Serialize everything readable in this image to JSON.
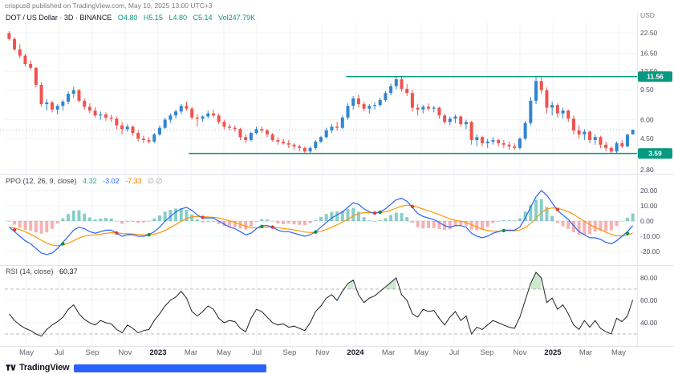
{
  "header": {
    "byline": "crispus8 published on TradingView.com, May 10, 2025 13:00 UTC+3"
  },
  "footer": {
    "brand": "TradingView"
  },
  "colors": {
    "candle_up": "#2f86d0",
    "candle_down": "#ef5350",
    "ray": "#089981",
    "hist_up": "rgba(38,166,154,0.55)",
    "hist_down": "rgba(239,83,80,0.45)",
    "ppo_line": "#2962ff",
    "signal_line": "#ff9800",
    "buy_marker": "#0c9146",
    "sell_marker": "#e53935",
    "rsi_line": "#1e222d",
    "rsi_fill": "rgba(76,175,80,0.28)"
  },
  "x_axis": {
    "labels": [
      {
        "t": "May"
      },
      {
        "t": "Jul"
      },
      {
        "t": "Sep"
      },
      {
        "t": "Nov"
      },
      {
        "t": "2023",
        "year": true
      },
      {
        "t": "Mar"
      },
      {
        "t": "May"
      },
      {
        "t": "Jul"
      },
      {
        "t": "Sep"
      },
      {
        "t": "Nov"
      },
      {
        "t": "2024",
        "year": true
      },
      {
        "t": "Mar"
      },
      {
        "t": "May"
      },
      {
        "t": "Jul"
      },
      {
        "t": "Sep"
      },
      {
        "t": "Nov"
      },
      {
        "t": "2025",
        "year": true
      },
      {
        "t": "Mar"
      },
      {
        "t": "May"
      }
    ]
  },
  "chart_data": [
    {
      "type": "candlestick",
      "symbol": "DOT / US Dollar",
      "interval": "3D",
      "exchange": "BINANCE",
      "legend": {
        "title": "DOT / US Dollar · 3D · BINANCE",
        "open": "O4.80",
        "high": "H5.15",
        "low": "L4.80",
        "close": "C5.14",
        "volume": "Vol247.79K"
      },
      "scale": "log",
      "y_axis": {
        "label": "USD",
        "ticks": [
          22.5,
          16.5,
          12.5,
          9.5,
          6.0,
          4.5,
          2.8
        ]
      },
      "last_price": 5.14,
      "levels": [
        {
          "price": 11.56,
          "start_frac": 0.54
        },
        {
          "price": 3.59,
          "start_frac": 0.29
        }
      ],
      "candles": [
        [
          22.4,
          23.1,
          20,
          20.5
        ],
        [
          20.5,
          21,
          17.2,
          17.5
        ],
        [
          17.5,
          18.9,
          15.3,
          15.9
        ],
        [
          15.9,
          16.4,
          13.5,
          14
        ],
        [
          14,
          14.8,
          12.8,
          13.2
        ],
        [
          13.2,
          13.4,
          9.8,
          10.2
        ],
        [
          10.2,
          10.6,
          7.3,
          7.6
        ],
        [
          7.6,
          8.2,
          6.9,
          7.8
        ],
        [
          7.8,
          8,
          6.7,
          7
        ],
        [
          7,
          7.6,
          6.5,
          7.4
        ],
        [
          7.4,
          8.1,
          6.9,
          7.9
        ],
        [
          7.9,
          9.2,
          7.6,
          8.9
        ],
        [
          8.9,
          9.9,
          8.4,
          9.4
        ],
        [
          9.4,
          9.6,
          7.8,
          8
        ],
        [
          8,
          8.3,
          7,
          7.3
        ],
        [
          7.3,
          7.7,
          6.6,
          6.9
        ],
        [
          6.9,
          7.3,
          6.2,
          6.4
        ],
        [
          6.4,
          6.8,
          6,
          6.5
        ],
        [
          6.5,
          6.7,
          5.9,
          6.2
        ],
        [
          6.2,
          6.5,
          5.8,
          6.1
        ],
        [
          6.1,
          6.3,
          5.2,
          5.5
        ],
        [
          5.5,
          5.8,
          4.8,
          5.2
        ],
        [
          5.2,
          5.6,
          5,
          5.4
        ],
        [
          5.4,
          5.5,
          4.7,
          4.9
        ],
        [
          4.9,
          5.1,
          4.3,
          4.5
        ],
        [
          4.5,
          4.7,
          4.2,
          4.4
        ],
        [
          4.4,
          4.6,
          4.2,
          4.3
        ],
        [
          4.3,
          4.9,
          4.2,
          4.8
        ],
        [
          4.8,
          5.5,
          4.7,
          5.3
        ],
        [
          5.3,
          6.2,
          5.2,
          6
        ],
        [
          6,
          6.6,
          5.7,
          6.4
        ],
        [
          6.4,
          7,
          6.1,
          6.8
        ],
        [
          6.8,
          7.6,
          6.5,
          7.4
        ],
        [
          7.4,
          7.9,
          6.9,
          7.1
        ],
        [
          7.1,
          7.3,
          6,
          6.2
        ],
        [
          6.2,
          6.5,
          5.4,
          6.1
        ],
        [
          6.1,
          6.4,
          5.8,
          6.3
        ],
        [
          6.3,
          6.9,
          6.1,
          6.6
        ],
        [
          6.6,
          7,
          6.2,
          6.4
        ],
        [
          6.4,
          6.6,
          5.6,
          5.8
        ],
        [
          5.8,
          6,
          5.2,
          5.4
        ],
        [
          5.4,
          5.6,
          5.1,
          5.3
        ],
        [
          5.3,
          5.5,
          5,
          5.2
        ],
        [
          5.2,
          5.3,
          4.4,
          4.6
        ],
        [
          4.6,
          4.8,
          4.2,
          4.4
        ],
        [
          4.4,
          5,
          4.3,
          4.9
        ],
        [
          4.9,
          5.4,
          4.8,
          5.2
        ],
        [
          5.2,
          5.4,
          4.9,
          5.1
        ],
        [
          5.1,
          5.2,
          4.6,
          4.8
        ],
        [
          4.8,
          4.9,
          4.3,
          4.4
        ],
        [
          4.4,
          4.6,
          4.1,
          4.3
        ],
        [
          4.3,
          4.5,
          4.1,
          4.2
        ],
        [
          4.2,
          4.4,
          3.9,
          4.1
        ],
        [
          4.1,
          4.2,
          3.8,
          4
        ],
        [
          4,
          4.1,
          3.7,
          3.9
        ],
        [
          3.9,
          4,
          3.6,
          3.7
        ],
        [
          3.7,
          4,
          3.6,
          3.9
        ],
        [
          3.9,
          4.4,
          3.8,
          4.3
        ],
        [
          4.3,
          4.7,
          4.2,
          4.6
        ],
        [
          4.6,
          5.3,
          4.5,
          5.1
        ],
        [
          5.1,
          5.6,
          4.9,
          5.4
        ],
        [
          5.4,
          5.8,
          5.1,
          5.3
        ],
        [
          5.3,
          6.4,
          5.2,
          6.2
        ],
        [
          6.2,
          7.7,
          6,
          7.4
        ],
        [
          7.4,
          8.6,
          7,
          8.3
        ],
        [
          8.3,
          8.8,
          7.2,
          7.6
        ],
        [
          7.6,
          7.9,
          6.8,
          7.1
        ],
        [
          7.1,
          7.6,
          6.6,
          7.4
        ],
        [
          7.4,
          7.8,
          7,
          7.5
        ],
        [
          7.5,
          8.4,
          7.3,
          8.1
        ],
        [
          8.1,
          9.3,
          7.9,
          9
        ],
        [
          9,
          10.4,
          8.7,
          10
        ],
        [
          10,
          11.62,
          9.5,
          11.1
        ],
        [
          11.1,
          11.5,
          9.2,
          9.6
        ],
        [
          9.6,
          10.3,
          8.6,
          9
        ],
        [
          9,
          9.5,
          6.8,
          7.2
        ],
        [
          7.2,
          7.6,
          6.4,
          7
        ],
        [
          7,
          7.5,
          6.6,
          7.3
        ],
        [
          7.3,
          7.7,
          6.9,
          7.1
        ],
        [
          7.1,
          7.4,
          6.7,
          7.2
        ],
        [
          7.2,
          7.3,
          6.1,
          6.4
        ],
        [
          6.4,
          6.6,
          5.6,
          5.8
        ],
        [
          5.8,
          6.3,
          5.5,
          6.1
        ],
        [
          6.1,
          6.5,
          5.7,
          6.3
        ],
        [
          6.3,
          6.4,
          5.4,
          5.6
        ],
        [
          5.6,
          6,
          5.2,
          5.8
        ],
        [
          5.8,
          5.9,
          4.1,
          4.4
        ],
        [
          4.4,
          4.8,
          4,
          4.6
        ],
        [
          4.6,
          4.7,
          4,
          4.2
        ],
        [
          4.2,
          4.5,
          3.9,
          4.3
        ],
        [
          4.3,
          4.6,
          4.1,
          4.4
        ],
        [
          4.4,
          4.5,
          4,
          4.2
        ],
        [
          4.2,
          4.4,
          3.9,
          4.1
        ],
        [
          4.1,
          4.3,
          3.8,
          4
        ],
        [
          4,
          4.2,
          3.8,
          3.9
        ],
        [
          3.9,
          4.6,
          3.8,
          4.5
        ],
        [
          4.5,
          5.9,
          4.4,
          5.7
        ],
        [
          5.7,
          8.5,
          5.5,
          8
        ],
        [
          8,
          11.5,
          7.6,
          10.8
        ],
        [
          10.8,
          11.4,
          8.9,
          9.4
        ],
        [
          9.4,
          9.8,
          6.6,
          7.2
        ],
        [
          7.2,
          7.9,
          6.4,
          7.5
        ],
        [
          7.5,
          7.7,
          6.2,
          6.6
        ],
        [
          6.6,
          7.2,
          6.1,
          6.9
        ],
        [
          6.9,
          7,
          5.8,
          6.1
        ],
        [
          6.1,
          6.4,
          4.8,
          5.1
        ],
        [
          5.1,
          5.5,
          4.5,
          4.8
        ],
        [
          4.8,
          5.2,
          4.4,
          5
        ],
        [
          5,
          5.1,
          4.2,
          4.4
        ],
        [
          4.4,
          4.8,
          4.1,
          4.6
        ],
        [
          4.6,
          4.7,
          3.9,
          4.1
        ],
        [
          4.1,
          4.3,
          3.7,
          3.9
        ],
        [
          3.9,
          4,
          3.58,
          3.7
        ],
        [
          3.7,
          4.3,
          3.6,
          4.2
        ],
        [
          4.2,
          4.4,
          3.9,
          4
        ],
        [
          4,
          4.85,
          3.95,
          4.78
        ],
        [
          4.8,
          5.15,
          4.8,
          5.14
        ]
      ]
    },
    {
      "type": "ppo",
      "title": "PPO (12, 26, 9, close)",
      "legend_values": [
        "4.32",
        "-3.02",
        "-7.33"
      ],
      "empty": "∅ ∅",
      "y_ticks": [
        20,
        10,
        0,
        -10,
        -20
      ],
      "ppo": [
        -4,
        -7,
        -10,
        -13,
        -15,
        -18,
        -21,
        -22,
        -21,
        -18,
        -14,
        -10,
        -6,
        -4,
        -5,
        -7,
        -8,
        -7,
        -6,
        -6,
        -8,
        -10,
        -9,
        -9,
        -10,
        -10,
        -9,
        -7,
        -4,
        0,
        3,
        6,
        8,
        9,
        7,
        4,
        2,
        2,
        2,
        0,
        -2,
        -4,
        -5,
        -7,
        -9,
        -8,
        -5,
        -3,
        -3,
        -4,
        -6,
        -7,
        -7,
        -8,
        -9,
        -10,
        -9,
        -7,
        -4,
        -1,
        2,
        4,
        6,
        9,
        12,
        11,
        8,
        6,
        5,
        6,
        8,
        11,
        14,
        15,
        13,
        9,
        5,
        3,
        2,
        1,
        -1,
        -3,
        -4,
        -3,
        -3,
        -4,
        -8,
        -10,
        -11,
        -10,
        -8,
        -7,
        -6,
        -6,
        -6,
        -4,
        2,
        9,
        16,
        20,
        17,
        12,
        7,
        4,
        1,
        -3,
        -7,
        -9,
        -11,
        -11,
        -12,
        -14,
        -15,
        -13,
        -10,
        -7,
        -3.02
      ]
    },
    {
      "type": "rsi",
      "title": "RSI (14, close)",
      "value": "60.37",
      "y_ticks": [
        80,
        60,
        40
      ],
      "bands": [
        70,
        30
      ],
      "rsi": [
        48,
        42,
        38,
        35,
        33,
        30,
        28,
        34,
        38,
        41,
        45,
        52,
        56,
        48,
        43,
        40,
        38,
        42,
        40,
        39,
        34,
        31,
        38,
        35,
        31,
        33,
        34,
        42,
        48,
        55,
        60,
        63,
        68,
        62,
        50,
        46,
        50,
        55,
        52,
        44,
        40,
        42,
        41,
        35,
        32,
        44,
        52,
        50,
        45,
        40,
        38,
        39,
        36,
        37,
        35,
        33,
        40,
        50,
        55,
        62,
        65,
        60,
        68,
        75,
        78,
        65,
        58,
        62,
        64,
        68,
        72,
        76,
        80,
        65,
        60,
        48,
        45,
        52,
        50,
        51,
        44,
        38,
        45,
        50,
        42,
        46,
        30,
        36,
        34,
        38,
        42,
        40,
        38,
        36,
        35,
        45,
        60,
        75,
        85,
        80,
        58,
        62,
        52,
        56,
        48,
        38,
        34,
        42,
        36,
        42,
        35,
        32,
        30,
        44,
        41,
        46,
        60.37
      ]
    }
  ]
}
